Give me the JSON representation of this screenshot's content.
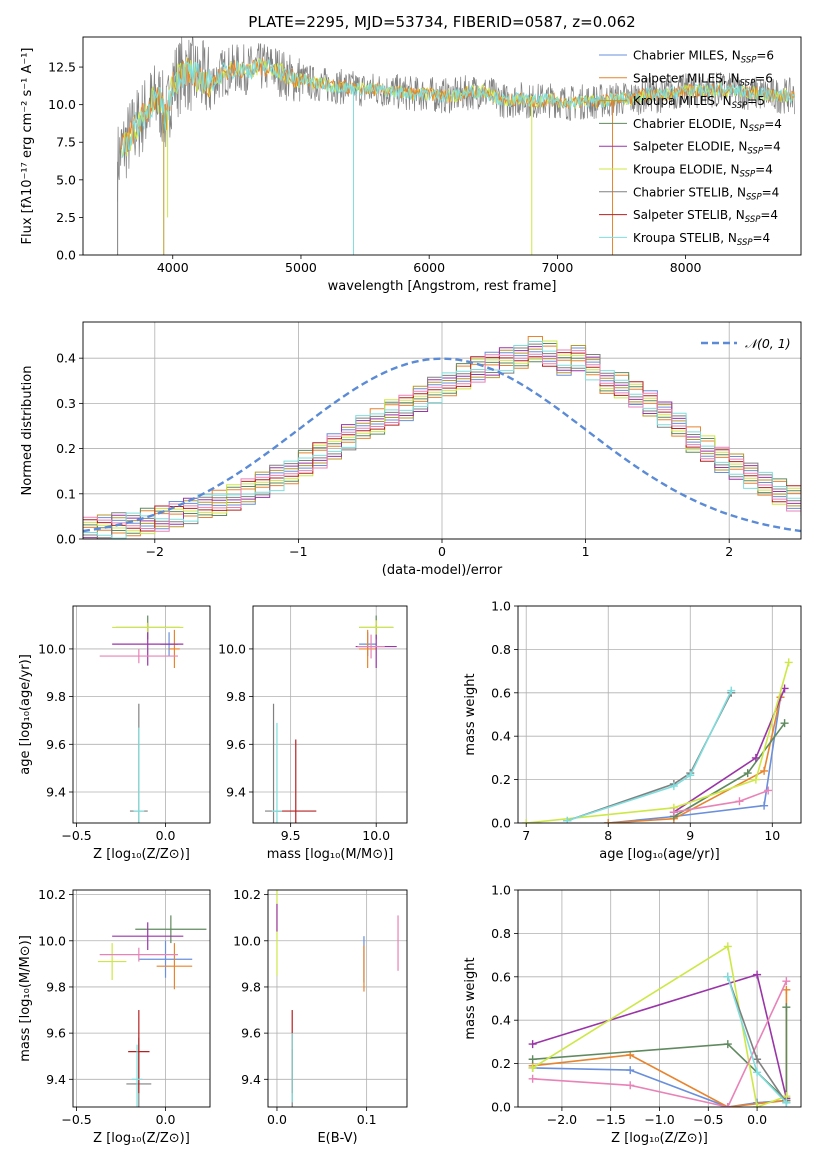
{
  "colors": {
    "chabrier_miles": "#6a8fdc",
    "salpeter_miles": "#e8842e",
    "kroupa_miles": "#b89a2a",
    "chabrier_elodie": "#5f8a5f",
    "salpeter_elodie": "#9a35a8",
    "kroupa_elodie": "#cde845",
    "chabrier_stelib": "#808080",
    "salpeter_stelib": "#b52020",
    "kroupa_stelib": "#7fdedd",
    "pink": "#e883b8",
    "gaussian": "#5b8bd6",
    "grid": "#b0b0b0"
  },
  "chart_data": [
    {
      "id": "spectrum",
      "type": "line",
      "title": "PLATE=2295, MJD=53734, FIBERID=0587, z=0.062",
      "xlabel": "wavelength [Angstrom, rest frame]",
      "ylabel": "Flux [fλ10⁻¹⁷ erg cm⁻² s⁻¹ A⁻¹]",
      "xlim": [
        3300,
        8900
      ],
      "ylim": [
        0,
        14.5
      ],
      "xticks": [
        4000,
        5000,
        6000,
        7000,
        8000
      ],
      "yticks": [
        0.0,
        2.5,
        5.0,
        7.5,
        10.0,
        12.5
      ],
      "grid": false,
      "legend_position": "right",
      "legend": [
        "Chabrier MILES, N_SSP=6",
        "Salpeter MILES, N_SSP=6",
        "Kroupa MILES, N_SSP=5",
        "Chabrier ELODIE, N_SSP=4",
        "Salpeter ELODIE, N_SSP=4",
        "Kroupa ELODIE, N_SSP=4",
        "Chabrier STELIB, N_SSP=4",
        "Salpeter STELIB, N_SSP=4",
        "Kroupa STELIB, N_SSP=4"
      ],
      "legend_display": [
        {
          "base": "Chabrier MILES, N",
          "sub": "SSP",
          "tail": "=6"
        },
        {
          "base": "Salpeter MILES, N",
          "sub": "SSP",
          "tail": "=6"
        },
        {
          "base": "Kroupa MILES, N",
          "sub": "SSP",
          "tail": "=5"
        },
        {
          "base": "Chabrier ELODIE, N",
          "sub": "SSP",
          "tail": "=4"
        },
        {
          "base": "Salpeter ELODIE, N",
          "sub": "SSP",
          "tail": "=4"
        },
        {
          "base": "Kroupa ELODIE, N",
          "sub": "SSP",
          "tail": "=4"
        },
        {
          "base": "Chabrier STELIB, N",
          "sub": "SSP",
          "tail": "=4"
        },
        {
          "base": "Salpeter STELIB, N",
          "sub": "SSP",
          "tail": "=4"
        },
        {
          "base": "Kroupa STELIB, N",
          "sub": "SSP",
          "tail": "=4"
        }
      ],
      "data_series": {
        "name": "data",
        "x": [
          3570,
          3600,
          3650,
          3700,
          3750,
          3800,
          3850,
          3900,
          3950,
          4000,
          4100,
          4200,
          4300,
          4400,
          4500,
          4600,
          4700,
          4800,
          4900,
          5000,
          5100,
          5200,
          5300,
          5400,
          5500,
          5600,
          5700,
          5800,
          5900,
          6000,
          6100,
          6200,
          6300,
          6400,
          6500,
          6600,
          6700,
          6800,
          6900,
          7000,
          7100,
          7200,
          7300,
          7400,
          7500,
          7600,
          7700,
          7800,
          7900,
          8000,
          8100,
          8200,
          8300,
          8400,
          8500,
          8600,
          8700,
          8800,
          8850
        ],
        "y": [
          6.2,
          7.0,
          7.6,
          8.4,
          9.0,
          9.6,
          10.3,
          10.2,
          9.0,
          11.5,
          12.2,
          11.8,
          11.4,
          12.2,
          12.4,
          12.3,
          12.5,
          12.4,
          11.8,
          11.7,
          11.4,
          11.3,
          11.2,
          11.1,
          11.0,
          11.0,
          10.9,
          10.8,
          10.7,
          10.7,
          10.6,
          10.6,
          10.8,
          10.9,
          10.6,
          10.2,
          10.4,
          10.2,
          10.3,
          10.3,
          10.1,
          10.2,
          10.2,
          10.3,
          10.4,
          10.4,
          10.7,
          10.6,
          10.8,
          10.9,
          10.9,
          11.0,
          11.0,
          10.9,
          10.8,
          10.7,
          10.6,
          10.6,
          10.5
        ]
      },
      "dips": [
        {
          "x": 3570,
          "y": 0.0
        },
        {
          "x": 3930,
          "y": 0.0
        },
        {
          "x": 3960,
          "y": 2.5
        },
        {
          "x": 5410,
          "y": 0.0
        },
        {
          "x": 6800,
          "y": 0.0
        },
        {
          "x": 7430,
          "y": 0.0
        }
      ]
    },
    {
      "id": "residuals",
      "type": "line",
      "xlabel": "(data-model)/error",
      "ylabel": "Normed distribution",
      "xlim": [
        -2.5,
        2.5
      ],
      "ylim": [
        0,
        0.48
      ],
      "xticks": [
        -2,
        -1,
        0,
        1,
        2
      ],
      "yticks": [
        0.0,
        0.1,
        0.2,
        0.3,
        0.4
      ],
      "grid": true,
      "legend_position": "upper right",
      "legend": [
        "𝒩(0, 1)"
      ],
      "bin_width": 0.1,
      "bins_start": -2.5,
      "histogram": [
        0.02,
        0.025,
        0.03,
        0.035,
        0.04,
        0.045,
        0.055,
        0.062,
        0.07,
        0.08,
        0.092,
        0.105,
        0.12,
        0.135,
        0.15,
        0.168,
        0.185,
        0.205,
        0.225,
        0.245,
        0.26,
        0.28,
        0.29,
        0.31,
        0.33,
        0.345,
        0.36,
        0.375,
        0.385,
        0.395,
        0.4,
        0.42,
        0.41,
        0.39,
        0.4,
        0.38,
        0.35,
        0.34,
        0.32,
        0.3,
        0.275,
        0.25,
        0.22,
        0.2,
        0.175,
        0.16,
        0.14,
        0.125,
        0.105,
        0.09,
        0.08,
        0.07,
        0.06,
        0.05,
        0.04,
        0.035,
        0.03,
        0.028,
        0.025,
        0.02
      ]
    },
    {
      "id": "age_vs_z",
      "type": "scatter",
      "xlabel": "Z [log₁₀(Z/Z⊙)]",
      "ylabel": "age  [log₁₀(age/yr)]",
      "xlim": [
        -0.52,
        0.25
      ],
      "ylim": [
        9.27,
        10.18
      ],
      "xticks": [
        -0.5,
        0.0
      ],
      "yticks": [
        9.4,
        9.6,
        9.8,
        10.0
      ],
      "grid": true,
      "points": [
        {
          "series": "chabrier_miles",
          "x": 0.02,
          "y": 10.02,
          "xerr": 0.05,
          "yerr": 0.05
        },
        {
          "series": "salpeter_miles",
          "x": 0.05,
          "y": 10.0,
          "xerr": 0.03,
          "yerr": 0.08
        },
        {
          "series": "chabrier_elodie",
          "x": -0.1,
          "y": 10.09,
          "xerr": 0.18,
          "yerr": 0.05
        },
        {
          "series": "salpeter_elodie",
          "x": -0.1,
          "y": 10.02,
          "xerr": 0.2,
          "yerr": 0.09
        },
        {
          "series": "kroupa_elodie",
          "x": -0.1,
          "y": 10.09,
          "xerr": 0.2,
          "yerr": 0.02
        },
        {
          "series": "pink",
          "x": -0.15,
          "y": 9.97,
          "xerr": 0.22,
          "yerr": 0.03
        },
        {
          "series": "chabrier_stelib",
          "x": -0.15,
          "y": 9.32,
          "xerr": 0.05,
          "yerr": 0.45
        },
        {
          "series": "kroupa_stelib",
          "x": -0.15,
          "y": 9.32,
          "xerr": 0.03,
          "yerr": 0.35
        }
      ]
    },
    {
      "id": "age_vs_mass",
      "type": "scatter",
      "xlabel": "mass [log₁₀(M/M⊙)]",
      "ylabel": "",
      "xlim": [
        9.28,
        10.18
      ],
      "ylim": [
        9.27,
        10.18
      ],
      "xticks": [
        9.5,
        10.0
      ],
      "yticks": [
        9.4,
        9.6,
        9.8,
        10.0
      ],
      "grid": true,
      "points": [
        {
          "series": "chabrier_miles",
          "x": 9.95,
          "y": 10.02,
          "xerr": 0.05,
          "yerr": 0.05
        },
        {
          "series": "salpeter_miles",
          "x": 9.95,
          "y": 10.0,
          "xerr": 0.05,
          "yerr": 0.08
        },
        {
          "series": "chabrier_elodie",
          "x": 10.0,
          "y": 10.09,
          "xerr": 0.1,
          "yerr": 0.05
        },
        {
          "series": "salpeter_elodie",
          "x": 10.0,
          "y": 10.01,
          "xerr": 0.12,
          "yerr": 0.09
        },
        {
          "series": "kroupa_elodie",
          "x": 10.0,
          "y": 10.09,
          "xerr": 0.1,
          "yerr": 0.03
        },
        {
          "series": "pink",
          "x": 9.97,
          "y": 10.01,
          "xerr": 0.08,
          "yerr": 0.05
        },
        {
          "series": "chabrier_stelib",
          "x": 9.4,
          "y": 9.32,
          "xerr": 0.05,
          "yerr": 0.45
        },
        {
          "series": "salpeter_stelib",
          "x": 9.53,
          "y": 9.32,
          "xerr": 0.12,
          "yerr": 0.3
        },
        {
          "series": "kroupa_stelib",
          "x": 9.42,
          "y": 9.32,
          "xerr": 0.03,
          "yerr": 0.37
        }
      ]
    },
    {
      "id": "weight_vs_age",
      "type": "line",
      "xlabel": "age  [log₁₀(age/yr)]",
      "ylabel": "mass weight",
      "xlim": [
        6.9,
        10.35
      ],
      "ylim": [
        0,
        1.0
      ],
      "xticks": [
        7,
        8,
        9,
        10
      ],
      "yticks": [
        0.0,
        0.2,
        0.4,
        0.6,
        0.8,
        1.0
      ],
      "grid": true,
      "series": [
        {
          "series": "chabrier_miles",
          "x": [
            8.0,
            8.8,
            9.9,
            10.1
          ],
          "y": [
            0.0,
            0.03,
            0.08,
            0.58
          ]
        },
        {
          "series": "salpeter_miles",
          "x": [
            8.0,
            8.8,
            9.9,
            10.1
          ],
          "y": [
            0.0,
            0.02,
            0.24,
            0.58
          ]
        },
        {
          "series": "chabrier_elodie",
          "x": [
            8.8,
            9.7,
            10.15
          ],
          "y": [
            0.03,
            0.23,
            0.46
          ]
        },
        {
          "series": "salpeter_elodie",
          "x": [
            8.8,
            9.8,
            10.15
          ],
          "y": [
            0.05,
            0.3,
            0.62
          ]
        },
        {
          "series": "kroupa_elodie",
          "x": [
            7.0,
            8.8,
            9.8,
            10.2
          ],
          "y": [
            0.0,
            0.07,
            0.2,
            0.74
          ]
        },
        {
          "series": "pink",
          "x": [
            8.8,
            9.6,
            9.95
          ],
          "y": [
            0.05,
            0.1,
            0.15
          ]
        },
        {
          "series": "chabrier_stelib",
          "x": [
            7.5,
            8.8,
            9.0,
            9.5
          ],
          "y": [
            0.01,
            0.18,
            0.23,
            0.6
          ]
        },
        {
          "series": "kroupa_stelib",
          "x": [
            7.5,
            8.8,
            9.0,
            9.5
          ],
          "y": [
            0.01,
            0.17,
            0.22,
            0.61
          ]
        }
      ]
    },
    {
      "id": "mass_vs_z",
      "type": "scatter",
      "xlabel": "Z [log₁₀(Z/Z⊙)]",
      "ylabel": "mass [log₁₀(M/M⊙)]",
      "xlim": [
        -0.52,
        0.25
      ],
      "ylim": [
        9.28,
        10.22
      ],
      "xticks": [
        -0.5,
        0.0
      ],
      "yticks": [
        9.4,
        9.6,
        9.8,
        10.0,
        10.2
      ],
      "grid": true,
      "points": [
        {
          "series": "chabrier_miles",
          "x": 0.0,
          "y": 9.92,
          "xerr": 0.15,
          "yerr": 0.08
        },
        {
          "series": "salpeter_miles",
          "x": 0.05,
          "y": 9.89,
          "xerr": 0.1,
          "yerr": 0.1
        },
        {
          "series": "chabrier_elodie",
          "x": 0.03,
          "y": 10.05,
          "xerr": 0.2,
          "yerr": 0.06
        },
        {
          "series": "salpeter_elodie",
          "x": -0.1,
          "y": 10.02,
          "xerr": 0.2,
          "yerr": 0.06
        },
        {
          "series": "kroupa_elodie",
          "x": -0.3,
          "y": 9.91,
          "xerr": 0.08,
          "yerr": 0.08
        },
        {
          "series": "pink",
          "x": -0.15,
          "y": 9.94,
          "xerr": 0.22,
          "yerr": 0.03
        },
        {
          "series": "chabrier_stelib",
          "x": -0.15,
          "y": 9.38,
          "xerr": 0.07,
          "yerr": 0.2
        },
        {
          "series": "salpeter_stelib",
          "x": -0.15,
          "y": 9.52,
          "xerr": 0.06,
          "yerr": 0.18
        },
        {
          "series": "kroupa_stelib",
          "x": -0.16,
          "y": 9.4,
          "xerr": 0.03,
          "yerr": 0.15
        }
      ]
    },
    {
      "id": "mass_vs_ebv",
      "type": "scatter",
      "xlabel": "E(B-V)",
      "ylabel": "",
      "xlim": [
        -0.01,
        0.145
      ],
      "ylim": [
        9.28,
        10.22
      ],
      "xticks": [
        0.0,
        0.1
      ],
      "yticks": [
        9.4,
        9.6,
        9.8,
        10.0,
        10.2
      ],
      "grid": true,
      "points": [
        {
          "series": "chabrier_miles",
          "x": 0.097,
          "y": 9.92,
          "xerr": 0,
          "yerr": 0.1
        },
        {
          "series": "salpeter_miles",
          "x": 0.097,
          "y": 9.88,
          "xerr": 0,
          "yerr": 0.1
        },
        {
          "series": "kroupa_elodie",
          "x": 0.0,
          "y": 10.05,
          "xerr": 0,
          "yerr": 0.2
        },
        {
          "series": "salpeter_elodie",
          "x": 0.0,
          "y": 10.1,
          "xerr": 0,
          "yerr": 0.06
        },
        {
          "series": "pink",
          "x": 0.135,
          "y": 9.99,
          "xerr": 0,
          "yerr": 0.12
        },
        {
          "series": "chabrier_stelib",
          "x": 0.017,
          "y": 9.38,
          "xerr": 0,
          "yerr": 0.15
        },
        {
          "series": "salpeter_stelib",
          "x": 0.017,
          "y": 9.52,
          "xerr": 0,
          "yerr": 0.18
        },
        {
          "series": "kroupa_stelib",
          "x": 0.017,
          "y": 9.45,
          "xerr": 0,
          "yerr": 0.15
        }
      ]
    },
    {
      "id": "weight_vs_z",
      "type": "line",
      "xlabel": "Z [log₁₀(Z/Z⊙)]",
      "ylabel": "mass weight",
      "xlim": [
        -2.45,
        0.45
      ],
      "ylim": [
        0,
        1.0
      ],
      "xticks": [
        -2.0,
        -1.5,
        -1.0,
        -0.5,
        0.0
      ],
      "yticks": [
        0.0,
        0.2,
        0.4,
        0.6,
        0.8,
        1.0
      ],
      "grid": true,
      "series": [
        {
          "series": "chabrier_miles",
          "x": [
            -2.3,
            -1.3,
            -0.3,
            0.0,
            0.3
          ],
          "y": [
            0.18,
            0.17,
            0.0,
            0.02,
            0.03
          ]
        },
        {
          "series": "salpeter_miles",
          "x": [
            -2.3,
            -1.3,
            -0.3,
            0.3,
            0.3
          ],
          "y": [
            0.19,
            0.24,
            0.0,
            0.03,
            0.54
          ]
        },
        {
          "series": "chabrier_elodie",
          "x": [
            -2.3,
            -0.3,
            0.3,
            0.3
          ],
          "y": [
            0.22,
            0.29,
            0.03,
            0.46
          ]
        },
        {
          "series": "salpeter_elodie",
          "x": [
            -2.3,
            0.0,
            0.3
          ],
          "y": [
            0.29,
            0.61,
            0.04
          ]
        },
        {
          "series": "kroupa_elodie",
          "x": [
            -2.3,
            -0.3,
            0.0,
            0.3
          ],
          "y": [
            0.18,
            0.74,
            0.0,
            0.05
          ]
        },
        {
          "series": "pink",
          "x": [
            -2.3,
            -1.3,
            -0.3,
            0.3
          ],
          "y": [
            0.13,
            0.1,
            0.0,
            0.58
          ]
        },
        {
          "series": "chabrier_stelib",
          "x": [
            -0.3,
            0.0,
            0.3
          ],
          "y": [
            0.6,
            0.22,
            0.02
          ]
        },
        {
          "series": "kroupa_stelib",
          "x": [
            -0.3,
            0.0,
            0.3
          ],
          "y": [
            0.6,
            0.16,
            0.02
          ]
        }
      ]
    }
  ]
}
